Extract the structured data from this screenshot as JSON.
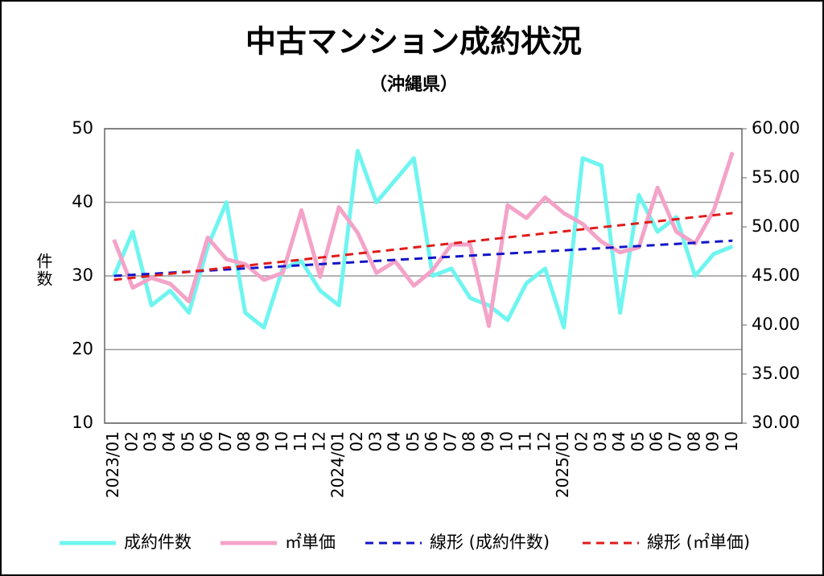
{
  "chart_data": {
    "type": "line",
    "title": "中古マンション成約状況",
    "subtitle": "（沖縄県）",
    "y_label": "件数",
    "categories": [
      "2023/01",
      "02",
      "03",
      "04",
      "05",
      "06",
      "07",
      "08",
      "09",
      "10",
      "11",
      "12",
      "2024/01",
      "02",
      "03",
      "04",
      "05",
      "06",
      "07",
      "08",
      "09",
      "10",
      "11",
      "12",
      "2025/01",
      "02",
      "03",
      "04",
      "05",
      "06",
      "07",
      "08",
      "09",
      "10"
    ],
    "ylim": [
      10,
      50
    ],
    "yticks": [
      10,
      20,
      30,
      40,
      50
    ],
    "y2lim": [
      30,
      60
    ],
    "y2ticks": [
      {
        "value": 30,
        "label": "30.00"
      },
      {
        "value": 35,
        "label": "35.00"
      },
      {
        "value": 40,
        "label": "40.00"
      },
      {
        "value": 45,
        "label": "45.00"
      },
      {
        "value": 50,
        "label": "50.00"
      },
      {
        "value": 55,
        "label": "55.00"
      },
      {
        "value": 60,
        "label": "60.00"
      }
    ],
    "grid": true,
    "legend": "bottom",
    "series": [
      {
        "name": "成約件数",
        "color": "#6ff5f0",
        "line_style": "solid",
        "values": [
          30,
          36,
          26,
          28,
          25,
          34,
          40,
          25,
          23,
          31,
          32,
          28,
          26,
          47,
          40,
          43,
          46,
          30,
          31,
          27,
          26,
          24,
          29,
          31,
          23,
          46,
          45,
          25,
          41,
          36,
          38,
          30,
          33,
          34
        ]
      },
      {
        "name": "㎡単価",
        "color": "#f4a3c8",
        "line_style": "solid",
        "axis": "y2",
        "values": [
          48.7,
          43.8,
          44.8,
          44.2,
          42.4,
          48.9,
          46.7,
          46.2,
          44.6,
          45.3,
          51.7,
          44.9,
          52.0,
          49.4,
          45.3,
          46.5,
          44.0,
          45.6,
          48.2,
          48.2,
          39.9,
          52.2,
          50.9,
          53.0,
          51.4,
          50.3,
          48.5,
          47.4,
          47.9,
          54.0,
          49.5,
          48.3,
          51.7,
          57.6
        ]
      },
      {
        "name": "線形 (成約件数)",
        "color": "#1414c8",
        "line_style": "dashed",
        "values": [
          30.0,
          30.15,
          30.29,
          30.44,
          30.58,
          30.73,
          30.87,
          31.02,
          31.16,
          31.31,
          31.45,
          31.6,
          31.74,
          31.89,
          32.03,
          32.18,
          32.32,
          32.47,
          32.61,
          32.76,
          32.9,
          33.05,
          33.19,
          33.34,
          33.48,
          33.63,
          33.77,
          33.92,
          34.06,
          34.21,
          34.35,
          34.5,
          34.64,
          34.79
        ]
      },
      {
        "name": "線形 (㎡単価)",
        "color": "#e01b1b",
        "line_style": "dashed",
        "axis": "y2",
        "values": [
          44.6,
          44.81,
          45.01,
          45.22,
          45.42,
          45.63,
          45.84,
          46.04,
          46.25,
          46.45,
          46.66,
          46.87,
          47.07,
          47.28,
          47.48,
          47.69,
          47.9,
          48.1,
          48.31,
          48.51,
          48.72,
          48.93,
          49.13,
          49.34,
          49.54,
          49.75,
          49.96,
          50.16,
          50.37,
          50.57,
          50.78,
          50.99,
          51.19,
          51.4
        ]
      }
    ]
  }
}
